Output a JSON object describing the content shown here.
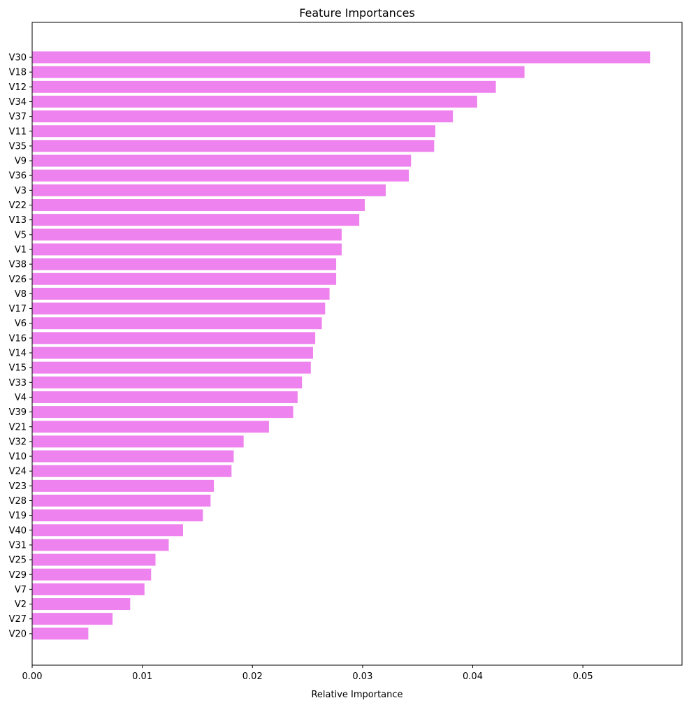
{
  "chart_data": {
    "type": "bar",
    "orientation": "horizontal",
    "title": "Feature Importances",
    "xlabel": "Relative Importance",
    "ylabel": "",
    "xlim": [
      0.0,
      0.059
    ],
    "x_ticks": [
      0.0,
      0.01,
      0.02,
      0.03,
      0.04,
      0.05
    ],
    "x_tick_labels": [
      "0.00",
      "0.01",
      "0.02",
      "0.03",
      "0.04",
      "0.05"
    ],
    "grid": false,
    "bar_color": "#ee82ee",
    "categories": [
      "V30",
      "V18",
      "V12",
      "V34",
      "V37",
      "V11",
      "V35",
      "V9",
      "V36",
      "V3",
      "V22",
      "V13",
      "V5",
      "V1",
      "V38",
      "V26",
      "V8",
      "V17",
      "V6",
      "V16",
      "V14",
      "V15",
      "V33",
      "V4",
      "V39",
      "V21",
      "V32",
      "V10",
      "V24",
      "V23",
      "V28",
      "V19",
      "V40",
      "V31",
      "V25",
      "V29",
      "V7",
      "V2",
      "V27",
      "V20"
    ],
    "values": [
      0.0561,
      0.0447,
      0.0421,
      0.0404,
      0.0382,
      0.0366,
      0.0365,
      0.0344,
      0.0342,
      0.0321,
      0.0302,
      0.0297,
      0.0281,
      0.0281,
      0.0276,
      0.0276,
      0.027,
      0.0266,
      0.0263,
      0.0257,
      0.0255,
      0.0253,
      0.0245,
      0.0241,
      0.0237,
      0.0215,
      0.0192,
      0.0183,
      0.0181,
      0.0165,
      0.0162,
      0.0155,
      0.0137,
      0.0124,
      0.0112,
      0.0108,
      0.0102,
      0.0089,
      0.0073,
      0.0051
    ]
  }
}
